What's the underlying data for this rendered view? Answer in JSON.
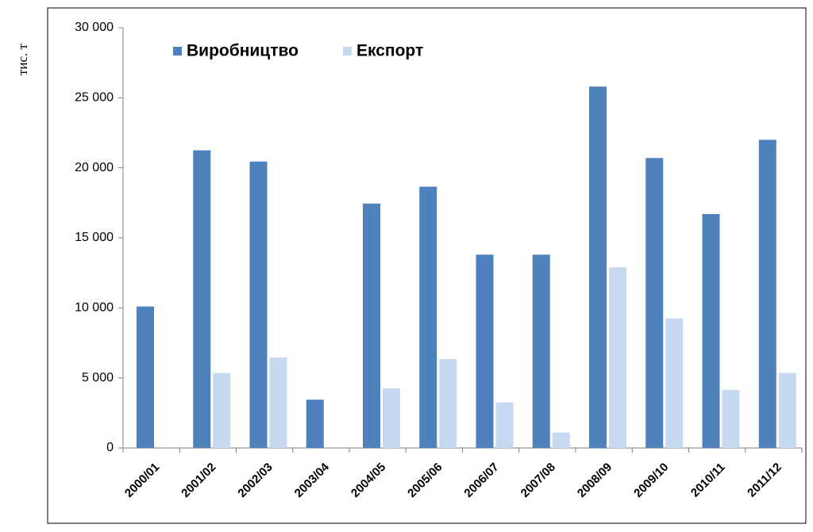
{
  "chart_data": {
    "type": "bar",
    "y_label": "тис. т",
    "categories": [
      "2000/01",
      "2001/02",
      "2002/03",
      "2003/04",
      "2004/05",
      "2005/06",
      "2006/07",
      "2007/08",
      "2008/09",
      "2009/10",
      "2010/11",
      "2011/12"
    ],
    "series": [
      {
        "name": "Виробництво",
        "color": "#4f81bd",
        "values": [
          10100,
          21250,
          20450,
          3450,
          17450,
          18650,
          13800,
          13800,
          25800,
          20700,
          16700,
          22000
        ]
      },
      {
        "name": "Експорт",
        "color": "#c6d9f1",
        "values": [
          null,
          5350,
          6450,
          null,
          4250,
          6350,
          3250,
          1100,
          12900,
          9250,
          4150,
          5350
        ]
      }
    ],
    "ylim": [
      0,
      30000
    ],
    "yticks": [
      0,
      {
        "value": 5000,
        "label": "5 000"
      },
      {
        "value": 10000,
        "label": "10 000"
      },
      {
        "value": 15000,
        "label": "15 000"
      },
      {
        "value": 20000,
        "label": "20 000"
      },
      {
        "value": 25000,
        "label": "25 000"
      },
      {
        "value": 30000,
        "label": "30 000"
      }
    ],
    "grid": false
  }
}
